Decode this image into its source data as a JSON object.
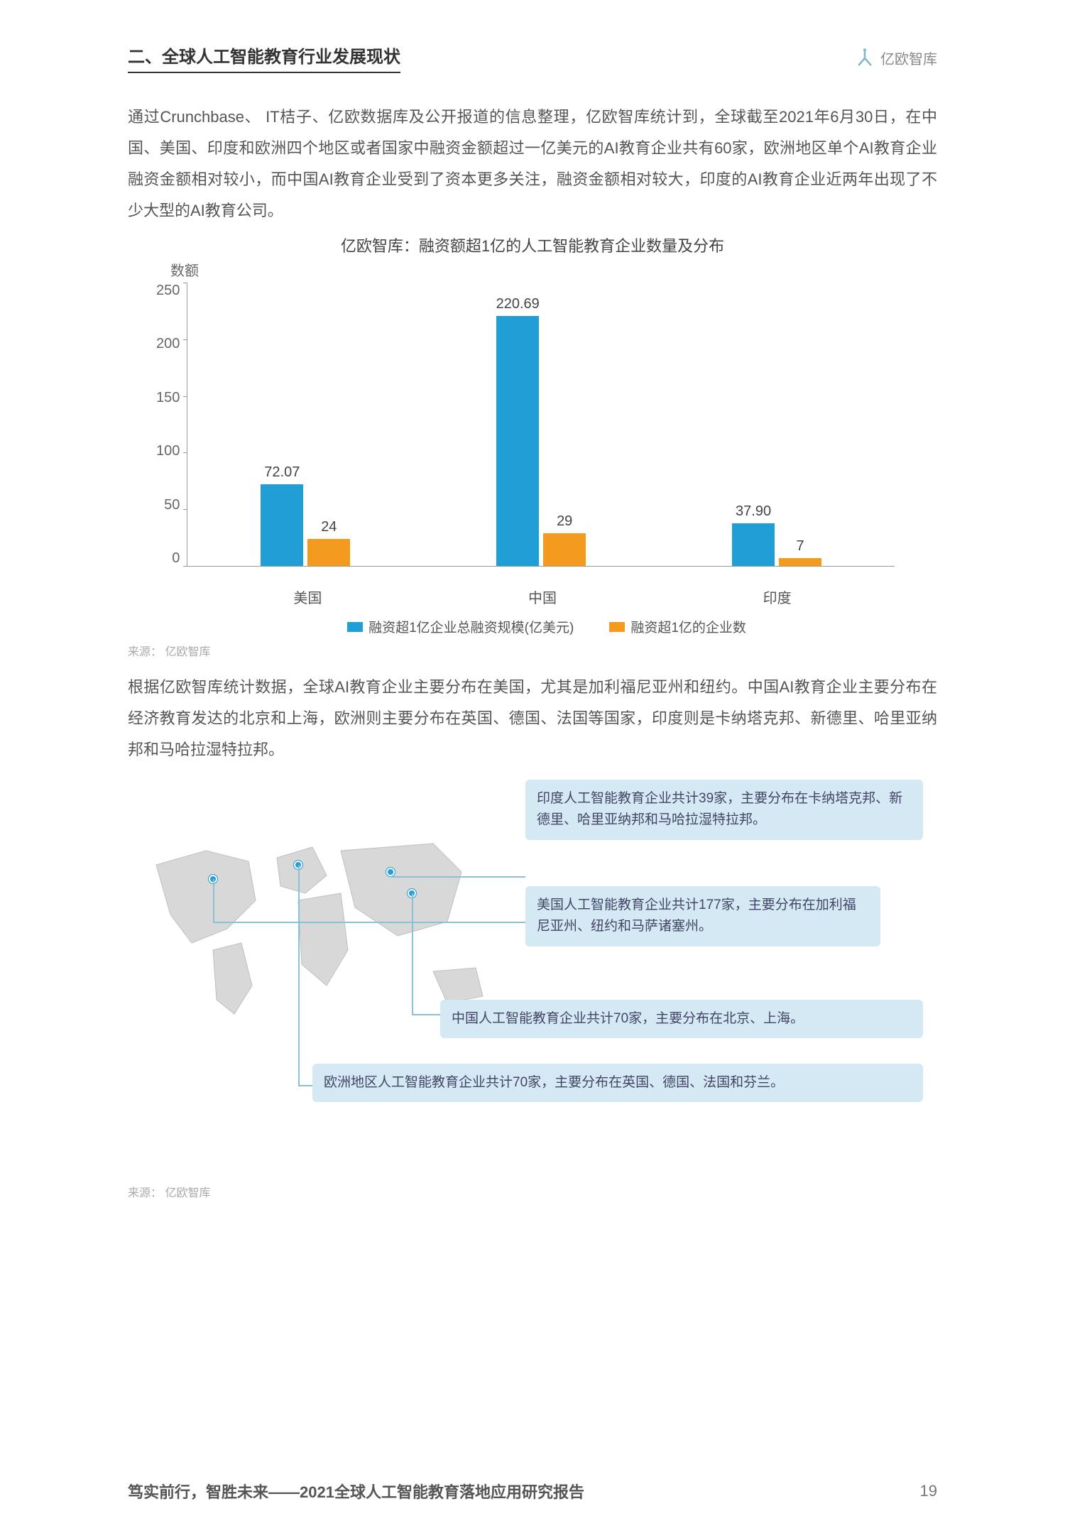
{
  "header": {
    "section_title": "二、全球人工智能教育行业发展现状",
    "logo_text": "亿欧智库"
  },
  "paragraph1": "通过Crunchbase、 IT桔子、亿欧数据库及公开报道的信息整理，亿欧智库统计到，全球截至2021年6月30日，在中国、美国、印度和欧洲四个地区或者国家中融资金额超过一亿美元的AI教育企业共有60家，欧洲地区单个AI教育企业融资金额相对较小，而中国AI教育企业受到了资本更多关注，融资金额相对较大，印度的AI教育企业近两年出现了不少大型的AI教育公司。",
  "chart": {
    "title": "亿欧智库：融资额超1亿的人工智能教育企业数量及分布",
    "y_axis_label": "数额",
    "ylim_max": 250,
    "ytick_step": 50,
    "yticks": [
      "250",
      "200",
      "150",
      "100",
      "50",
      "0"
    ],
    "categories": [
      "美国",
      "中国",
      "印度"
    ],
    "series": [
      {
        "name": "融资超1亿企业总融资规模(亿美元)",
        "color": "#1f9fd6",
        "values": [
          72.07,
          220.69,
          37.9
        ],
        "labels": [
          "72.07",
          "220.69",
          "37.90"
        ]
      },
      {
        "name": "融资超1亿的企业数",
        "color": "#f39a1f",
        "values": [
          24,
          29,
          7
        ],
        "labels": [
          "24",
          "29",
          "7"
        ]
      }
    ],
    "source": "来源： 亿欧智库"
  },
  "paragraph2": "根据亿欧智库统计数据，全球AI教育企业主要分布在美国，尤其是加利福尼亚州和纽约。中国AI教育企业主要分布在经济教育发达的北京和上海，欧洲则主要分布在英国、德国、法国等国家，印度则是卡纳塔克邦、新德里、哈里亚纳邦和马哈拉湿特拉邦。",
  "map": {
    "callouts": [
      {
        "id": "india",
        "text": "印度人工智能教育企业共计39家，主要分布在卡纳塔克邦、新德里、哈里亚纳邦和马哈拉湿特拉邦。"
      },
      {
        "id": "usa",
        "text": "美国人工智能教育企业共计177家，主要分布在加利福尼亚州、纽约和马萨诸塞州。"
      },
      {
        "id": "china",
        "text": "中国人工智能教育企业共计70家，主要分布在北京、上海。"
      },
      {
        "id": "europe",
        "text": "欧洲地区人工智能教育企业共计70家，主要分布在英国、德国、法国和芬兰。"
      }
    ],
    "source": "来源： 亿欧智库",
    "callout_bg": "#d4e9f4",
    "dot_color": "#1f9fd6",
    "connector_color": "#8fbfd6",
    "map_fill": "#d8d8d8"
  },
  "footer": {
    "title_prefix": "笃实前行，智胜未来——",
    "title_main": "2021全球人工智能教育落地应用研究报告",
    "page_number": "19"
  },
  "colors": {
    "text_body": "#555555",
    "text_heading": "#333333",
    "background": "#ffffff"
  }
}
